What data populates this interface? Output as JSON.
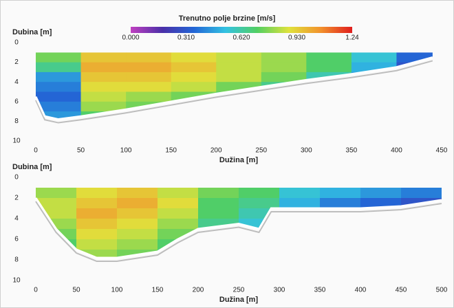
{
  "colorbar": {
    "title": "Trenutno polje brzine  [m/s]",
    "zlim": [
      0,
      1.24
    ],
    "colors": [
      "#c040c0",
      "#4a2fa8",
      "#2366d6",
      "#33c2e2",
      "#52cf62",
      "#dfe23c",
      "#f2922c",
      "#e01e1e"
    ],
    "ticks": [
      {
        "value": 0,
        "label": "0.000"
      },
      {
        "value": 0.31,
        "label": "0.310"
      },
      {
        "value": 0.62,
        "label": "0.620"
      },
      {
        "value": 0.93,
        "label": "0.930"
      },
      1.24
    ]
  },
  "chart_data": [
    {
      "type": "heatmap",
      "y_label": "Dubina [m]",
      "x_label": "Dužina [m]",
      "xlim": [
        0,
        450
      ],
      "ylim": [
        10,
        0
      ],
      "xticks": [
        0,
        50,
        100,
        150,
        200,
        250,
        300,
        350,
        400,
        450
      ],
      "yticks": [
        0,
        2,
        4,
        6,
        8,
        10
      ],
      "x": [
        0,
        50,
        100,
        150,
        200,
        250,
        300,
        350,
        400,
        450
      ],
      "y": [
        1,
        2,
        3,
        4,
        5,
        6,
        7,
        8
      ],
      "z": [
        [
          0.75,
          0.95,
          0.95,
          0.9,
          0.85,
          0.8,
          0.7,
          0.55,
          0.35
        ],
        [
          0.65,
          1.0,
          1.0,
          0.95,
          0.85,
          0.8,
          0.7,
          0.5,
          0.3
        ],
        [
          0.45,
          0.95,
          0.95,
          0.9,
          0.85,
          0.75,
          0.6,
          0.45,
          null
        ],
        [
          0.4,
          0.9,
          0.9,
          0.85,
          0.75,
          0.65,
          null,
          null,
          null
        ],
        [
          0.35,
          0.85,
          0.8,
          0.75,
          0.7,
          null,
          null,
          null,
          null
        ],
        [
          0.4,
          0.8,
          0.75,
          null,
          null,
          null,
          null,
          null,
          null
        ],
        [
          0.45,
          0.7,
          null,
          null,
          null,
          null,
          null,
          null,
          null
        ]
      ],
      "bed": {
        "x": [
          0,
          10,
          25,
          50,
          100,
          150,
          200,
          250,
          300,
          350,
          400,
          440
        ],
        "y": [
          5.5,
          7.5,
          7.8,
          7.5,
          6.8,
          6.0,
          5.2,
          4.5,
          3.8,
          3.2,
          2.5,
          1.5
        ]
      }
    },
    {
      "type": "heatmap",
      "y_label": "Dubina [m]",
      "x_label": "Dužina [m]",
      "xlim": [
        0,
        500
      ],
      "ylim": [
        10,
        0
      ],
      "xticks": [
        0,
        50,
        100,
        150,
        200,
        250,
        300,
        350,
        400,
        450,
        500
      ],
      "yticks": [
        0,
        2,
        4,
        6,
        8,
        10
      ],
      "x": [
        0,
        50,
        100,
        150,
        200,
        250,
        300,
        350,
        400,
        450,
        500
      ],
      "y": [
        1,
        2,
        3,
        4,
        5,
        6,
        7,
        8
      ],
      "z": [
        [
          0.8,
          0.9,
          0.95,
          0.85,
          0.75,
          0.7,
          0.55,
          0.5,
          0.45,
          0.4
        ],
        [
          0.85,
          0.95,
          1.0,
          0.9,
          0.7,
          0.65,
          0.5,
          0.4,
          0.35,
          0.3
        ],
        [
          0.85,
          1.0,
          0.95,
          0.85,
          0.7,
          0.6,
          null,
          null,
          null,
          null
        ],
        [
          0.8,
          0.95,
          0.9,
          0.8,
          0.65,
          0.55,
          null,
          null,
          null,
          null
        ],
        [
          0.75,
          0.9,
          0.85,
          0.75,
          null,
          null,
          null,
          null,
          null,
          null
        ],
        [
          0.7,
          0.85,
          0.8,
          0.7,
          null,
          null,
          null,
          null,
          null,
          null
        ],
        [
          null,
          0.8,
          0.75,
          0.65,
          null,
          null,
          null,
          null,
          null,
          null
        ]
      ],
      "bed": {
        "x": [
          0,
          25,
          50,
          75,
          100,
          150,
          175,
          200,
          250,
          275,
          290,
          350,
          400,
          450,
          500
        ],
        "y": [
          2.0,
          5.0,
          7.0,
          7.8,
          7.8,
          7.2,
          6.0,
          5.0,
          4.5,
          5.0,
          3.0,
          3.0,
          3.0,
          2.8,
          2.2
        ]
      }
    }
  ]
}
